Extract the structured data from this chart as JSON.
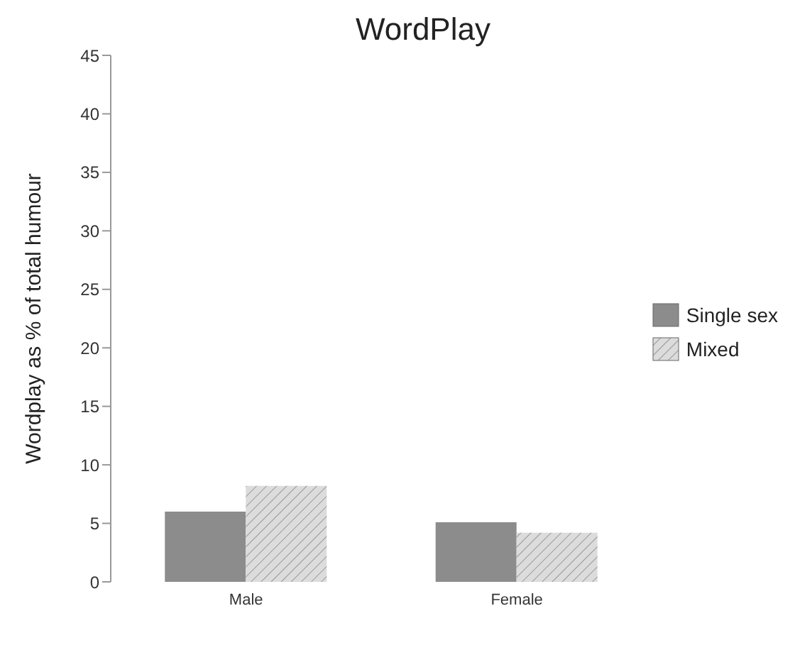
{
  "chart_data": {
    "type": "bar",
    "title": "WordPlay",
    "ylabel": "Wordplay as % of total humour",
    "categories": [
      "Male",
      "Female"
    ],
    "series": [
      {
        "name": "Single sex",
        "color": "#8c8c8c",
        "values": [
          6,
          5.1
        ]
      },
      {
        "name": "Mixed",
        "color": "#dcdcdc",
        "values": [
          8.2,
          4.2
        ]
      }
    ],
    "ylim": [
      0,
      45
    ],
    "yticks": [
      0,
      5,
      10,
      15,
      20,
      25,
      30,
      35,
      40,
      45
    ],
    "grid": false,
    "legend": "right"
  }
}
